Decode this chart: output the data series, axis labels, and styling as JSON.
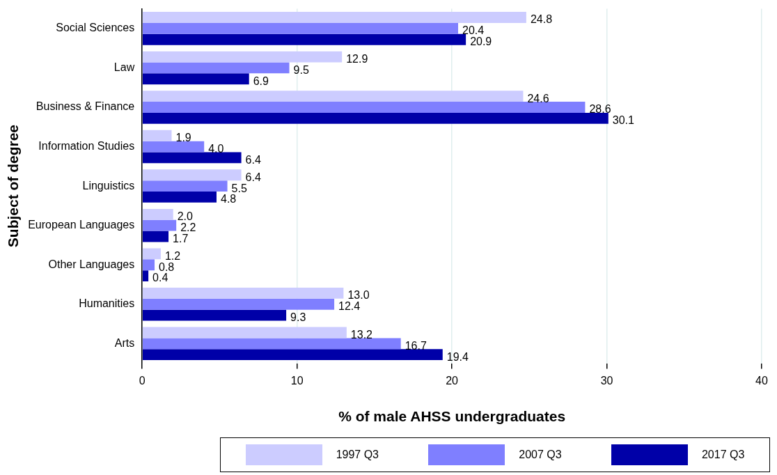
{
  "chart_data": {
    "type": "bar",
    "orientation": "horizontal",
    "ylabel": "Subject of degree",
    "xlabel": "% of male AHSS undergraduates",
    "categories": [
      "Social Sciences",
      "Law",
      "Business & Finance",
      "Information Studies",
      "Linguistics",
      "European Languages",
      "Other Languages",
      "Humanities",
      "Arts"
    ],
    "series": [
      {
        "name": "1997 Q3",
        "color": "#ccccff",
        "values": [
          24.8,
          12.9,
          24.6,
          1.9,
          6.4,
          2.0,
          1.2,
          13.0,
          13.2
        ],
        "value_labels": [
          "24.8",
          "12.9",
          "24.6",
          "1.9",
          "6.4",
          "2.0",
          "1.2",
          "13.0",
          "13.2"
        ]
      },
      {
        "name": "2007 Q3",
        "color": "#7f7fff",
        "values": [
          20.4,
          9.5,
          28.6,
          4.0,
          5.5,
          2.2,
          0.8,
          12.4,
          16.7
        ],
        "value_labels": [
          "20.4",
          "9.5",
          "28.6",
          "4.0",
          "5.5",
          "2.2",
          "0.8",
          "12.4",
          "16.7"
        ]
      },
      {
        "name": "2017 Q3",
        "color": "#0000a8",
        "values": [
          20.9,
          6.9,
          30.1,
          6.4,
          4.8,
          1.7,
          0.4,
          9.3,
          19.4
        ],
        "value_labels": [
          "20.9",
          "6.9",
          "30.1",
          "6.4",
          "4.8",
          "1.7",
          "0.4",
          "9.3",
          "19.4"
        ]
      }
    ],
    "xlim": [
      0,
      40
    ],
    "xticks": [
      0,
      10,
      20,
      30,
      40
    ],
    "grid": "x",
    "legend": "bottom"
  }
}
